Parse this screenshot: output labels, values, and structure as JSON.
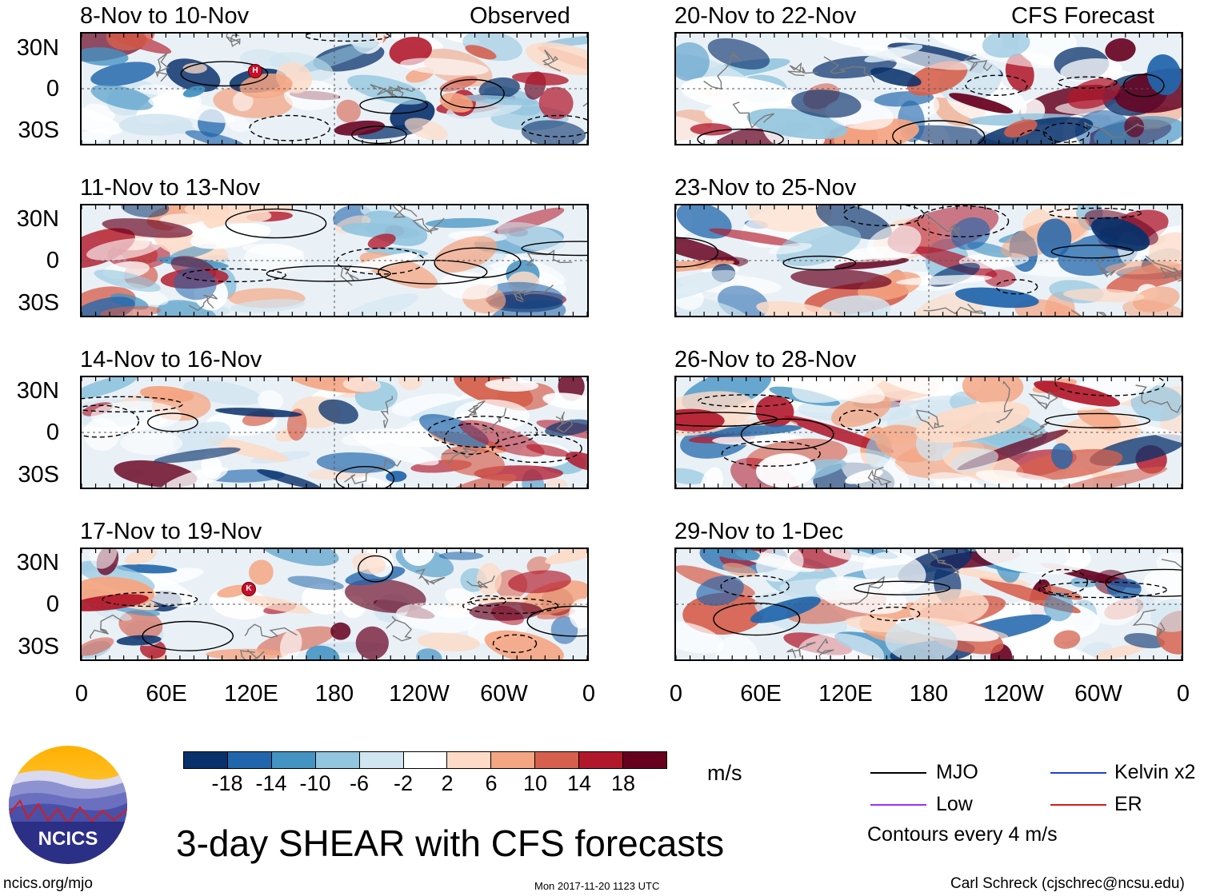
{
  "title": "3-day SHEAR with CFS forecasts",
  "units": "m/s",
  "panels": {
    "left_header": "Observed",
    "right_header": "CFS Forecast",
    "left": [
      {
        "label": "8-Nov to 10-Nov",
        "marker": "H"
      },
      {
        "label": "11-Nov to 13-Nov",
        "marker": ""
      },
      {
        "label": "14-Nov to 16-Nov",
        "marker": ""
      },
      {
        "label": "17-Nov to 19-Nov",
        "marker": "K"
      }
    ],
    "right": [
      {
        "label": "20-Nov to 22-Nov"
      },
      {
        "label": "23-Nov to 25-Nov"
      },
      {
        "label": "26-Nov to 28-Nov"
      },
      {
        "label": "29-Nov to 1-Dec"
      }
    ]
  },
  "lat_ticks": [
    "30N",
    "0",
    "30S"
  ],
  "lon_ticks": [
    "0",
    "60E",
    "120E",
    "180",
    "120W",
    "60W",
    "0"
  ],
  "colorbar": {
    "labels": [
      "-18",
      "-14",
      "-10",
      "-6",
      "-2",
      "2",
      "6",
      "10",
      "14",
      "18"
    ],
    "colors": [
      "#08306b",
      "#2166ac",
      "#4393c3",
      "#92c5de",
      "#d1e5f0",
      "#ffffff",
      "#fddbc7",
      "#f4a582",
      "#d6604d",
      "#b2182b",
      "#67001f"
    ]
  },
  "legend": {
    "items": [
      {
        "name": "MJO",
        "color": "#000000"
      },
      {
        "name": "Kelvin x2",
        "color": "#1f3fd1"
      },
      {
        "name": "Low",
        "color": "#9b30ff"
      },
      {
        "name": "ER",
        "color": "#d81b1b"
      }
    ],
    "note": "Contours every 4 m/s"
  },
  "logo": {
    "text": "NCICS"
  },
  "footer": {
    "left": "ncics.org/mjo",
    "center": "Mon 2017-11-20 1123 UTC",
    "right": "Carl Schreck (cjschrec@ncsu.edu)"
  }
}
